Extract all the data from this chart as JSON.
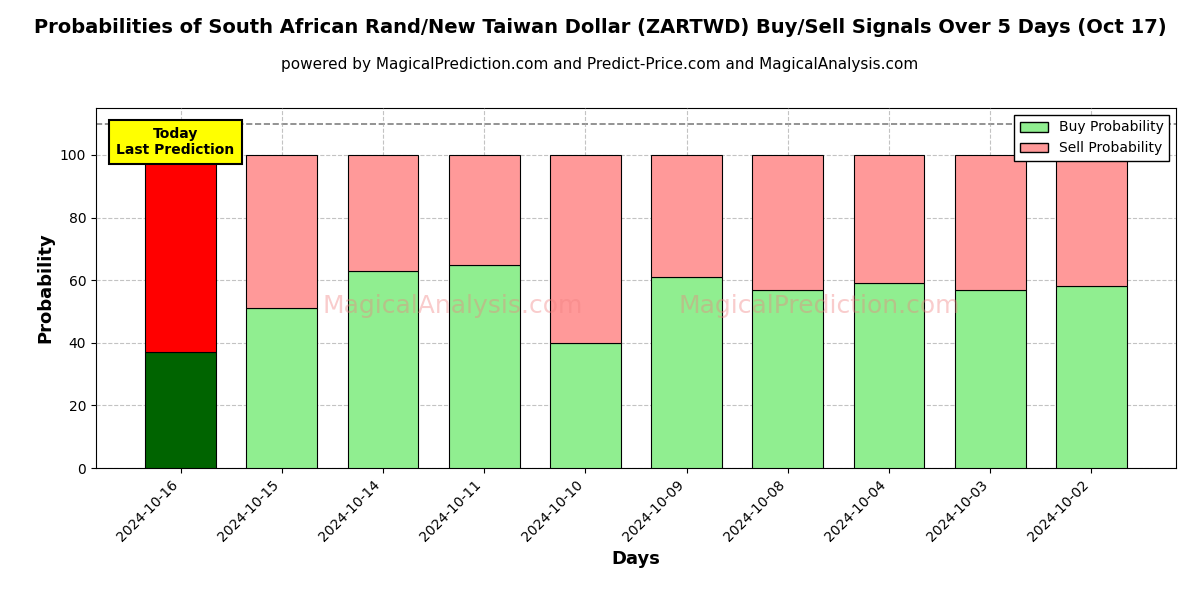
{
  "title": "Probabilities of South African Rand/New Taiwan Dollar (ZARTWD) Buy/Sell Signals Over 5 Days (Oct 17)",
  "subtitle": "powered by MagicalPrediction.com and Predict-Price.com and MagicalAnalysis.com",
  "xlabel": "Days",
  "ylabel": "Probability",
  "dates": [
    "2024-10-16",
    "2024-10-15",
    "2024-10-14",
    "2024-10-11",
    "2024-10-10",
    "2024-10-09",
    "2024-10-08",
    "2024-10-04",
    "2024-10-03",
    "2024-10-02"
  ],
  "buy_values": [
    37,
    51,
    63,
    65,
    40,
    61,
    57,
    59,
    57,
    58
  ],
  "sell_values": [
    63,
    49,
    37,
    35,
    60,
    39,
    43,
    41,
    43,
    42
  ],
  "buy_colors_today": "#006400",
  "sell_colors_today": "#ff0000",
  "buy_colors_other": "#90EE90",
  "sell_colors_other": "#FF9999",
  "bar_edge_color": "black",
  "bar_edge_width": 0.8,
  "ylim": [
    0,
    115
  ],
  "yticks": [
    0,
    20,
    40,
    60,
    80,
    100
  ],
  "grid_color": "#aaaaaa",
  "grid_alpha": 0.7,
  "grid_linestyle": "--",
  "legend_buy_label": "Buy Probability",
  "legend_sell_label": "Sell Probability",
  "annotation_text": "Today\nLast Prediction",
  "annotation_bg": "#FFFF00",
  "watermark_text1": "MagicalAnalysis.com",
  "watermark_text2": "MagicalPrediction.com",
  "dashed_line_y": 110,
  "title_fontsize": 14,
  "subtitle_fontsize": 11,
  "axis_label_fontsize": 13,
  "tick_fontsize": 10,
  "figsize": [
    12,
    6
  ],
  "dpi": 100
}
